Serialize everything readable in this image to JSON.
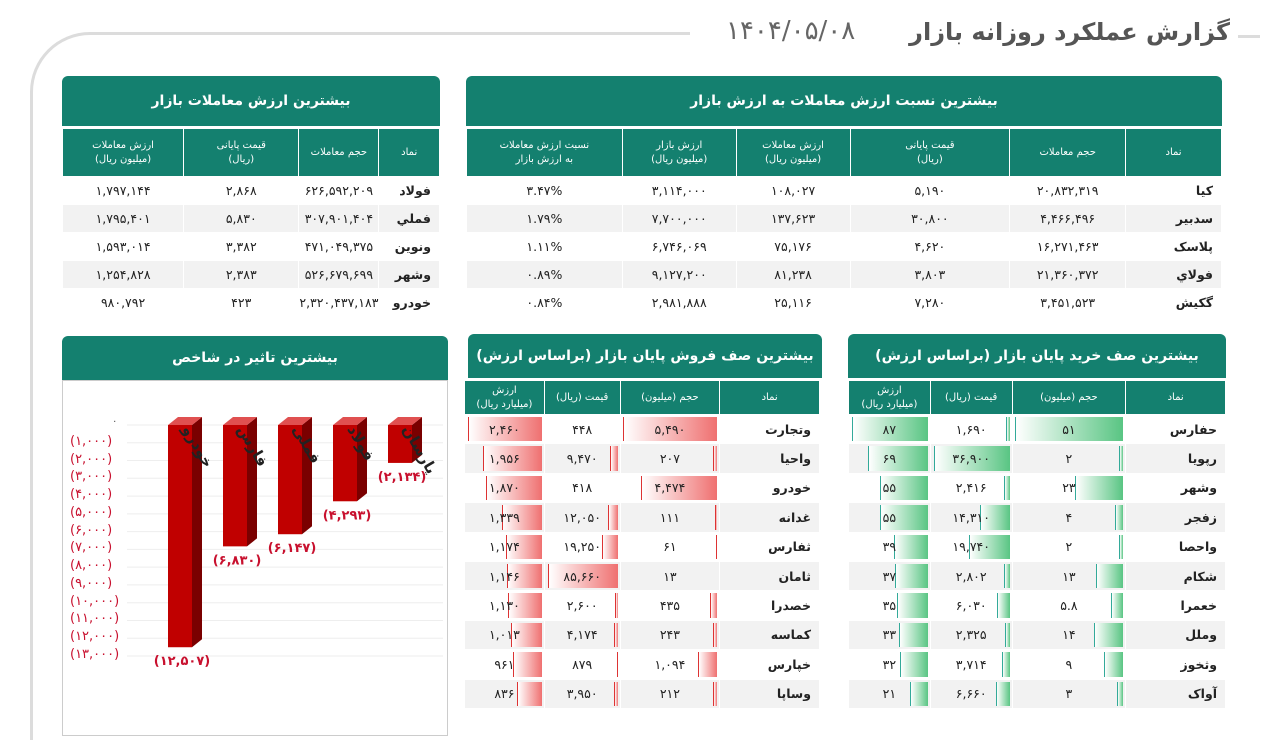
{
  "header": {
    "title": "گزارش عملکرد روزانه بازار",
    "date": "۱۴۰۴/۰۵/۰۸"
  },
  "top_value": {
    "title": "بیشترین ارزش معاملات بازار",
    "columns": [
      "نماد",
      "حجم معاملات",
      "قیمت پایانی\n(ریال)",
      "ارزش معاملات\n(میلیون ریال)"
    ],
    "rows": [
      [
        "فولاد",
        "۶۲۶,۵۹۲,۲۰۹",
        "۲,۸۶۸",
        "۱,۷۹۷,۱۴۴"
      ],
      [
        "فملي",
        "۳۰۷,۹۰۱,۴۰۴",
        "۵,۸۳۰",
        "۱,۷۹۵,۴۰۱"
      ],
      [
        "ونوین",
        "۴۷۱,۰۴۹,۳۷۵",
        "۳,۳۸۲",
        "۱,۵۹۳,۰۱۴"
      ],
      [
        "وشهر",
        "۵۲۶,۶۷۹,۶۹۹",
        "۲,۳۸۳",
        "۱,۲۵۴,۸۲۸"
      ],
      [
        "خودرو",
        "۲,۳۲۰,۴۳۷,۱۸۳",
        "۴۲۳",
        "۹۸۰,۷۹۲"
      ]
    ]
  },
  "top_ratio": {
    "title": "بیشترین نسبت ارزش معاملات به ارزش بازار",
    "columns": [
      "نماد",
      "حجم معاملات",
      "قیمت پایانی\n(ریال)",
      "ارزش معاملات\n(میلیون ریال)",
      "ارزش بازار\n(میلیون ریال)",
      "نسبت ارزش معاملات\nبه ارزش بازار"
    ],
    "rows": [
      [
        "کیا",
        "۲۰,۸۳۲,۳۱۹",
        "۵,۱۹۰",
        "۱۰۸,۰۲۷",
        "۳,۱۱۴,۰۰۰",
        "۳.۴۷%"
      ],
      [
        "سدبیر",
        "۴,۴۶۶,۴۹۶",
        "۳۰,۸۰۰",
        "۱۳۷,۶۲۳",
        "۷,۷۰۰,۰۰۰",
        "۱.۷۹%"
      ],
      [
        "پلاسک",
        "۱۶,۲۷۱,۴۶۳",
        "۴,۶۲۰",
        "۷۵,۱۷۶",
        "۶,۷۴۶,۰۶۹",
        "۱.۱۱%"
      ],
      [
        "فولاي",
        "۲۱,۳۶۰,۳۷۲",
        "۳,۸۰۳",
        "۸۱,۲۳۸",
        "۹,۱۲۷,۲۰۰",
        "۰.۸۹%"
      ],
      [
        "گکیش",
        "۳,۴۵۱,۵۲۳",
        "۷,۲۸۰",
        "۲۵,۱۱۶",
        "۲,۹۸۱,۸۸۸",
        "۰.۸۴%"
      ]
    ]
  },
  "impact": {
    "title": "بیشترین تاثیر در شاخص",
    "y_ticks": [
      "۰",
      "(۱,۰۰۰)",
      "(۲,۰۰۰)",
      "(۳,۰۰۰)",
      "(۴,۰۰۰)",
      "(۵,۰۰۰)",
      "(۶,۰۰۰)",
      "(۷,۰۰۰)",
      "(۸,۰۰۰)",
      "(۹,۰۰۰)",
      "(۱۰,۰۰۰)",
      "(۱۱,۰۰۰)",
      "(۱۲,۰۰۰)",
      "(۱۳,۰۰۰)"
    ]
  },
  "chart_data": {
    "type": "bar",
    "title": "بیشترین تاثیر در شاخص",
    "categories": [
      "خودرو",
      "فارس",
      "فملی",
      "فولاد",
      "پارسان"
    ],
    "values": [
      -12507,
      -6830,
      -6147,
      -4293,
      -2134
    ],
    "value_labels": [
      "(۱۲,۵۰۷)",
      "(۶,۸۳۰)",
      "(۶,۱۴۷)",
      "(۴,۲۹۳)",
      "(۲,۱۳۴)"
    ],
    "ylim": [
      -13000,
      0
    ],
    "bar_color": "#c00000"
  },
  "sell_queue": {
    "title": "بیشترین صف فروش پایان بازار (براساس ارزش)",
    "columns": [
      "نماد",
      "حجم (میلیون)",
      "قیمت (ریال)",
      "ارزش\n(میلیارد ریال)"
    ],
    "rows": [
      [
        "وتجارت",
        "۵,۴۹۰",
        "۴۴۸",
        "۲,۴۶۰"
      ],
      [
        "واحیا",
        "۲۰۷",
        "۹,۴۷۰",
        "۱,۹۵۶"
      ],
      [
        "خودرو",
        "۴,۴۷۴",
        "۴۱۸",
        "۱,۸۷۰"
      ],
      [
        "غدانه",
        "۱۱۱",
        "۱۲,۰۵۰",
        "۱,۳۳۹"
      ],
      [
        "ثفارس",
        "۶۱",
        "۱۹,۲۵۰",
        "۱,۱۷۴"
      ],
      [
        "ثامان",
        "۱۳",
        "۸۵,۶۶۰",
        "۱,۱۴۶"
      ],
      [
        "خصدرا",
        "۴۳۵",
        "۲,۶۰۰",
        "۱,۱۳۰"
      ],
      [
        "کماسه",
        "۲۴۳",
        "۴,۱۷۴",
        "۱,۰۱۳"
      ],
      [
        "خپارس",
        "۱,۰۹۴",
        "۸۷۹",
        "۹۶۱"
      ],
      [
        "وساپا",
        "۲۱۲",
        "۳,۹۵۰",
        "۸۳۶"
      ]
    ],
    "bar_fractions": {
      "vol": [
        1.0,
        0.04,
        0.81,
        0.02,
        0.01,
        0.0,
        0.08,
        0.04,
        0.2,
        0.04
      ],
      "price": [
        0.0,
        0.11,
        0.0,
        0.14,
        0.22,
        1.0,
        0.03,
        0.05,
        0.01,
        0.05
      ],
      "value": [
        1.0,
        0.79,
        0.76,
        0.54,
        0.48,
        0.47,
        0.46,
        0.41,
        0.39,
        0.34
      ]
    }
  },
  "buy_queue": {
    "title": "بیشترین صف خرید پایان بازار (براساس ارزش)",
    "columns": [
      "نماد",
      "حجم (میلیون)",
      "قیمت (ریال)",
      "ارزش\n(میلیارد ریال)"
    ],
    "rows": [
      [
        "حفارس",
        "۵۱",
        "۱,۶۹۰",
        "۸۷"
      ],
      [
        "رپویا",
        "۲",
        "۳۶,۹۰۰",
        "۶۹"
      ],
      [
        "وشهر",
        "۲۳",
        "۲,۴۱۶",
        "۵۵"
      ],
      [
        "زفجر",
        "۴",
        "۱۴,۳۱۰",
        "۵۵"
      ],
      [
        "واحصا",
        "۲",
        "۱۹,۷۴۰",
        "۳۹"
      ],
      [
        "شکام",
        "۱۳",
        "۲,۸۰۲",
        "۳۷"
      ],
      [
        "خعمرا",
        "۵.۸",
        "۶,۰۳۰",
        "۳۵"
      ],
      [
        "وملل",
        "۱۴",
        "۲,۳۲۵",
        "۳۳"
      ],
      [
        "وثخوز",
        "۹",
        "۳,۷۱۴",
        "۳۲"
      ],
      [
        "آواک",
        "۳",
        "۶,۶۶۰",
        "۲۱"
      ]
    ],
    "bar_fractions": {
      "vol": [
        1.0,
        0.04,
        0.45,
        0.08,
        0.04,
        0.25,
        0.11,
        0.27,
        0.18,
        0.06
      ],
      "price": [
        0.05,
        1.0,
        0.07,
        0.39,
        0.54,
        0.08,
        0.16,
        0.06,
        0.1,
        0.18
      ],
      "value": [
        1.0,
        0.79,
        0.63,
        0.63,
        0.45,
        0.43,
        0.4,
        0.38,
        0.37,
        0.24
      ]
    }
  }
}
